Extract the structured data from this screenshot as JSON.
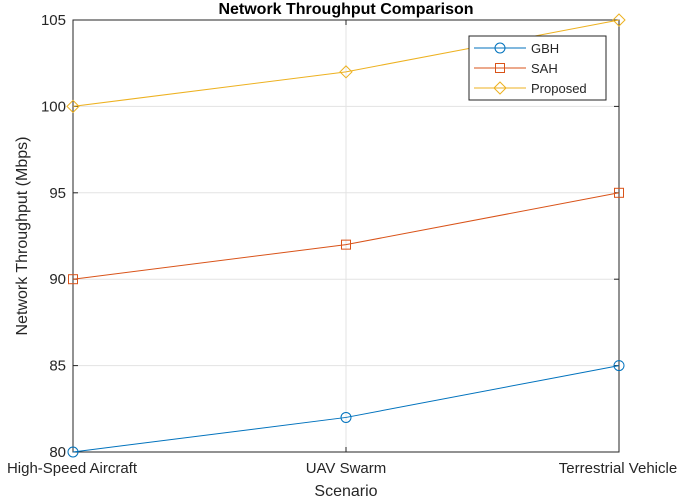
{
  "chart_data": {
    "type": "line",
    "title": "Network Throughput Comparison",
    "xlabel": "Scenario",
    "ylabel": "Network Throughput (Mbps)",
    "categories": [
      "High-Speed Aircraft",
      "UAV Swarm",
      "Terrestrial Vehicle"
    ],
    "ylim": [
      80,
      105
    ],
    "yticks": [
      80,
      85,
      90,
      95,
      100,
      105
    ],
    "grid": true,
    "legend_position": "top-right",
    "series": [
      {
        "name": "GBH",
        "values": [
          80,
          82,
          85
        ],
        "color": "#0072BD",
        "marker": "circle"
      },
      {
        "name": "SAH",
        "values": [
          90,
          92,
          95
        ],
        "color": "#D95319",
        "marker": "square"
      },
      {
        "name": "Proposed",
        "values": [
          100,
          102,
          105
        ],
        "color": "#EDB120",
        "marker": "diamond"
      }
    ]
  }
}
